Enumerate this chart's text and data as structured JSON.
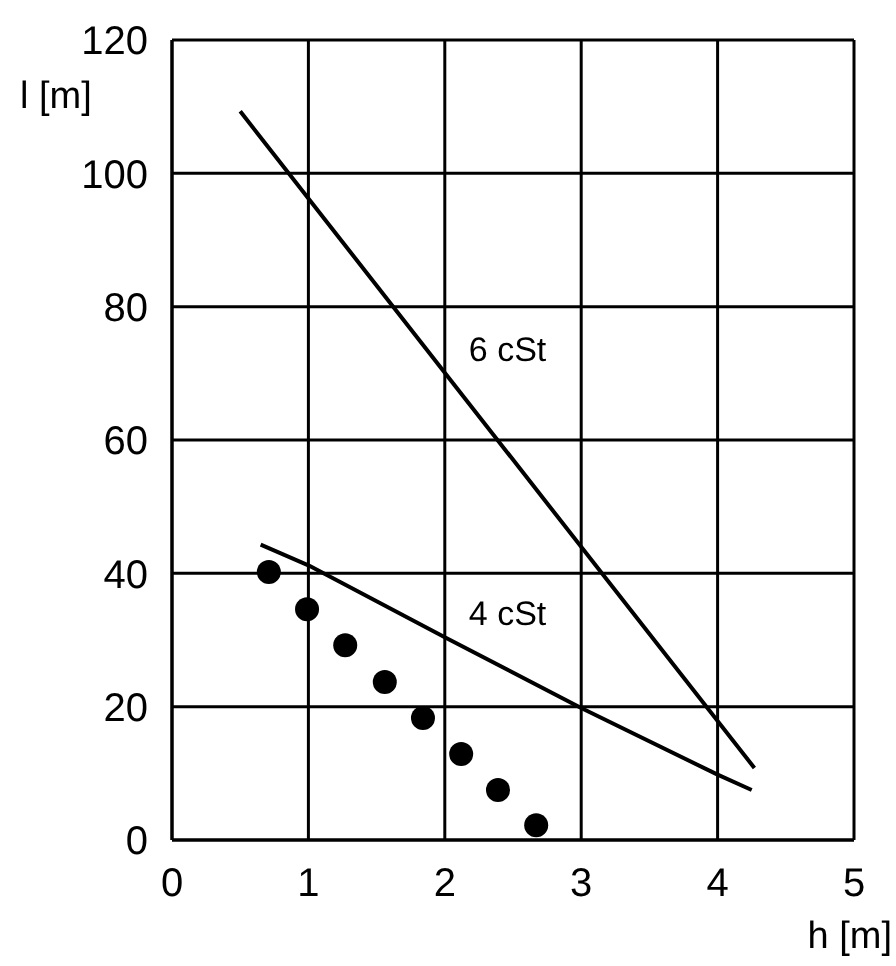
{
  "chart_data": {
    "type": "line",
    "xlabel": "h [m]",
    "ylabel": "l [m]",
    "xlim": [
      0,
      5
    ],
    "xticks": [
      0,
      1,
      2,
      3,
      4,
      5
    ],
    "ylim": [
      0,
      120
    ],
    "yticks": [
      0,
      20,
      40,
      60,
      80,
      100,
      120
    ],
    "grid": true,
    "legend": false,
    "series": [
      {
        "name": "6 cSt",
        "color": "#000000",
        "marker": "none",
        "x": [
          0.5,
          2,
          4.27
        ],
        "values": [
          109.3,
          70.1,
          10.8
        ]
      },
      {
        "name": "4 cSt",
        "color": "#000000",
        "marker": "none",
        "x": [
          0.65,
          1,
          2,
          3,
          4,
          4.25
        ],
        "values": [
          44.3,
          41.2,
          30.4,
          19.8,
          9.8,
          7.5
        ]
      },
      {
        "type": "scatter",
        "color": "#000000",
        "marker": "circle",
        "x": [
          0.71,
          0.99,
          1.27,
          1.56,
          1.84,
          2.12,
          2.39,
          2.67
        ],
        "values": [
          40.2,
          34.6,
          29.2,
          23.7,
          18.3,
          12.9,
          7.5,
          2.2
        ]
      }
    ]
  }
}
